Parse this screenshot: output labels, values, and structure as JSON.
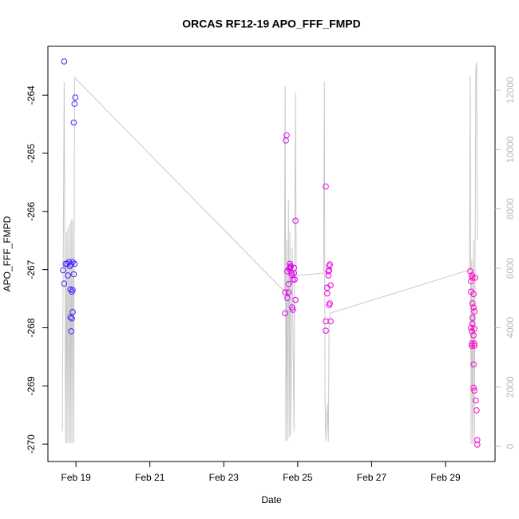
{
  "chart_data": {
    "type": "scatter",
    "title": "ORCAS RF12-19 APO_FFF_FMPD",
    "x_label": "Date",
    "y_label": "APO_FFF_FMPD",
    "xlim": [
      18.24,
      30.34
    ],
    "xticks": [
      {
        "value": 19,
        "label": "Feb 19"
      },
      {
        "value": 21,
        "label": "Feb 21"
      },
      {
        "value": 23,
        "label": "Feb 23"
      },
      {
        "value": 25,
        "label": "Feb 25"
      },
      {
        "value": 27,
        "label": "Feb 27"
      },
      {
        "value": 29,
        "label": "Feb 29"
      }
    ],
    "ylim": [
      -270.3,
      -263.16
    ],
    "yticks": [
      -270,
      -269,
      -268,
      -267,
      -266,
      -265,
      -264
    ],
    "y2lim": [
      -511,
      13480
    ],
    "y2ticks": [
      0,
      2000,
      4000,
      6000,
      8000,
      10000,
      12000
    ],
    "series": [
      {
        "type": "scatter",
        "color": "#4422ff",
        "x": [
          18.68,
          18.65,
          18.68,
          18.72,
          18.76,
          18.78,
          18.81,
          18.83,
          18.85,
          18.87,
          18.89,
          18.85,
          18.89,
          18.87,
          18.91,
          18.91,
          18.94,
          18.96,
          18.98,
          18.94,
          18.91,
          18.96
        ],
        "values": [
          -263.42,
          -267.01,
          -267.24,
          -266.9,
          -266.9,
          -267.1,
          -266.87,
          -266.94,
          -267.34,
          -266.91,
          -267.38,
          -267.82,
          -267.84,
          -268.06,
          -267.73,
          -267.35,
          -264.47,
          -264.15,
          -264.04,
          -267.08,
          -266.87,
          -266.9
        ]
      },
      {
        "type": "scatter",
        "color": "#dd00ee",
        "x": [
          24.7,
          24.68,
          24.66,
          24.75,
          24.66,
          24.72,
          24.75,
          24.77,
          24.79,
          24.81,
          24.83,
          24.85,
          24.87,
          24.9,
          24.92,
          24.85,
          24.87,
          24.94,
          24.94,
          24.79,
          24.9,
          24.81,
          24.72
        ],
        "values": [
          -264.69,
          -264.78,
          -267.39,
          -267.39,
          -267.75,
          -267.49,
          -267.25,
          -266.99,
          -266.9,
          -266.95,
          -267.06,
          -267.1,
          -267.17,
          -267.06,
          -267.17,
          -267.65,
          -267.69,
          -267.52,
          -266.16,
          -266.97,
          -266.97,
          -266.94,
          -267.03
        ]
      },
      {
        "type": "scatter",
        "color": "#ee00dd",
        "x": [
          25.76,
          25.76,
          25.76,
          25.8,
          25.8,
          25.83,
          25.85,
          25.87,
          25.85,
          25.89,
          25.87,
          25.85,
          25.89,
          25.83
        ],
        "values": [
          -265.57,
          -267.89,
          -268.05,
          -267.41,
          -267.31,
          -267.1,
          -266.94,
          -266.91,
          -267.01,
          -267.27,
          -267.58,
          -267.61,
          -267.89,
          -267.03
        ]
      },
      {
        "type": "scatter",
        "color": "#ff00cc",
        "x": [
          29.67,
          29.69,
          29.71,
          29.73,
          29.76,
          29.73,
          29.76,
          29.73,
          29.78,
          29.69,
          29.71,
          29.78,
          29.73,
          29.76,
          29.71,
          29.78,
          29.71,
          29.78,
          29.76,
          29.76,
          29.78,
          29.82,
          29.84,
          29.86,
          29.86,
          29.69,
          29.8
        ],
        "values": [
          -267.03,
          -267.2,
          -267.1,
          -267.14,
          -267.42,
          -267.58,
          -267.65,
          -267.83,
          -267.72,
          -268.0,
          -268.06,
          -268.02,
          -267.93,
          -268.13,
          -268.27,
          -268.27,
          -268.31,
          -268.31,
          -268.63,
          -269.03,
          -269.08,
          -269.25,
          -269.42,
          -269.93,
          -270.01,
          -267.38,
          -267.14
        ]
      },
      {
        "type": "line",
        "axis": "y2",
        "color": "#c8c8c8",
        "x": [
          18.63,
          18.68,
          18.72,
          18.74,
          18.76,
          18.78,
          18.81,
          18.83,
          18.85,
          18.87,
          18.89,
          18.91,
          18.94,
          18.96,
          24.64,
          24.66,
          24.68,
          24.7,
          24.72,
          24.75,
          24.77,
          24.79,
          24.81,
          24.85,
          24.9,
          24.94,
          24.96,
          25.7,
          25.72,
          25.74,
          25.76,
          25.8,
          25.83,
          25.85,
          25.89,
          29.65,
          29.67,
          29.69,
          29.71,
          29.73,
          29.76,
          29.78,
          29.82,
          29.84,
          29.86
        ],
        "values": [
          511,
          12266,
          108,
          7236,
          108,
          7371,
          108,
          7505,
          108,
          7640,
          108,
          7640,
          108,
          12428,
          5219,
          12132,
          188,
          6967,
          188,
          8312,
          296,
          7236,
          377,
          6698,
          511,
          11917,
          5757,
          5837,
          12293,
          1587,
          188,
          1453,
          161,
          4277,
          4492,
          5945,
          12481,
          81,
          6295,
          81,
          6967,
          108,
          12750,
          12939,
          6967
        ]
      }
    ]
  }
}
